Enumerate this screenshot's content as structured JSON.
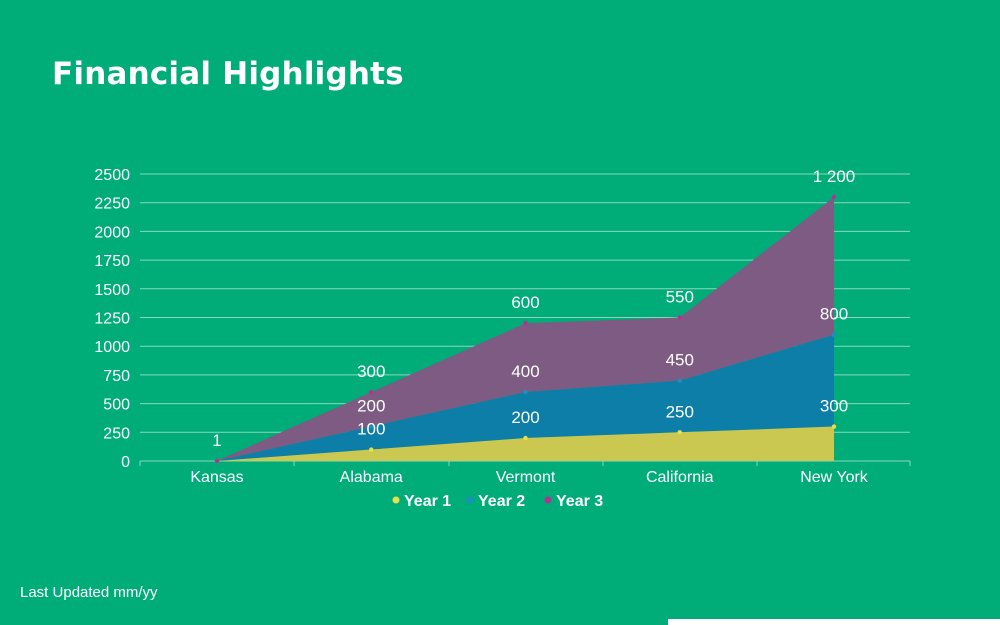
{
  "page": {
    "title": "Financial Highlights",
    "footer": "Last Updated mm/yy"
  },
  "colors": {
    "background": "#00ac78",
    "grid": "#8ad8bb",
    "text": "#ffffff",
    "year1": "#cbc851",
    "year2": "#0d7ea7",
    "year3": "#7e5b82"
  },
  "chart_data": {
    "type": "area",
    "stacked": true,
    "title": "",
    "xlabel": "",
    "ylabel": "",
    "categories": [
      "Kansas",
      "Alabama",
      "Vermont",
      "California",
      "New York"
    ],
    "ylim": [
      0,
      2500
    ],
    "yticks": [
      0,
      250,
      500,
      750,
      1000,
      1250,
      1500,
      1750,
      2000,
      2250,
      2500
    ],
    "grid": true,
    "legend_position": "bottom-center",
    "series": [
      {
        "name": "Year 1",
        "values": [
          0,
          100,
          200,
          250,
          300
        ],
        "labels": [
          "",
          "100",
          "200",
          "250",
          "300"
        ],
        "color": "#cbc851",
        "marker": "#e8df4a"
      },
      {
        "name": "Year 2",
        "values": [
          0,
          200,
          400,
          450,
          800
        ],
        "labels": [
          "",
          "200",
          "400",
          "450",
          "800"
        ],
        "color": "#0d7ea7",
        "marker": "#1c8fc0"
      },
      {
        "name": "Year 3",
        "values": [
          1,
          300,
          600,
          550,
          1200
        ],
        "labels": [
          "1",
          "300",
          "600",
          "550",
          "1 200"
        ],
        "color": "#7e5b82",
        "marker": "#b0338f"
      }
    ]
  }
}
